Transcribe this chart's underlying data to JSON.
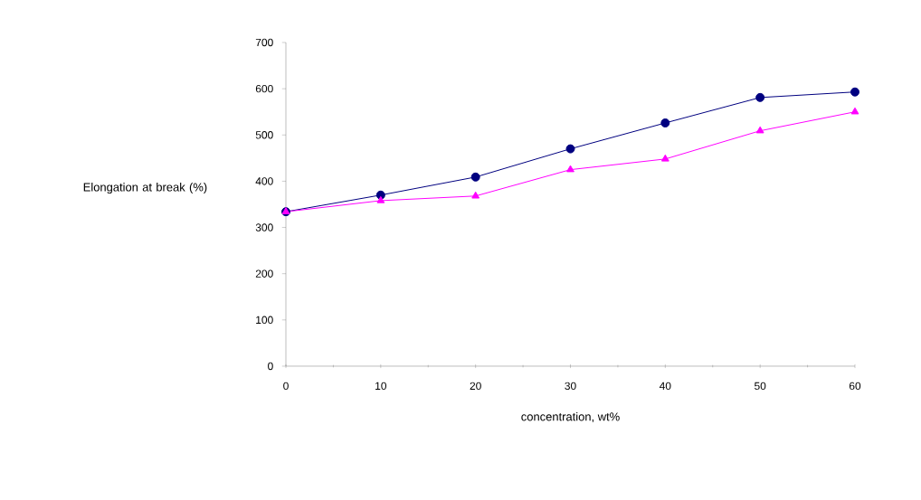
{
  "chart_data": {
    "type": "line",
    "xlabel": "concentration, wt%",
    "ylabel": "Elongation at break (%)",
    "x": [
      0,
      10,
      20,
      30,
      40,
      50,
      60
    ],
    "series": [
      {
        "color": "#000080",
        "marker": "circle",
        "values": [
          334,
          370,
          409,
          470,
          526,
          581,
          593
        ]
      },
      {
        "color": "#ff00ff",
        "marker": "triangle",
        "values": [
          334,
          358,
          368,
          425,
          448,
          509,
          550
        ]
      }
    ],
    "xlim": [
      0,
      60
    ],
    "xticks": [
      0,
      10,
      20,
      30,
      40,
      50,
      60
    ],
    "ylim": [
      0,
      700
    ],
    "yticks": [
      0,
      100,
      200,
      300,
      400,
      500,
      600,
      700
    ],
    "grid": false
  }
}
